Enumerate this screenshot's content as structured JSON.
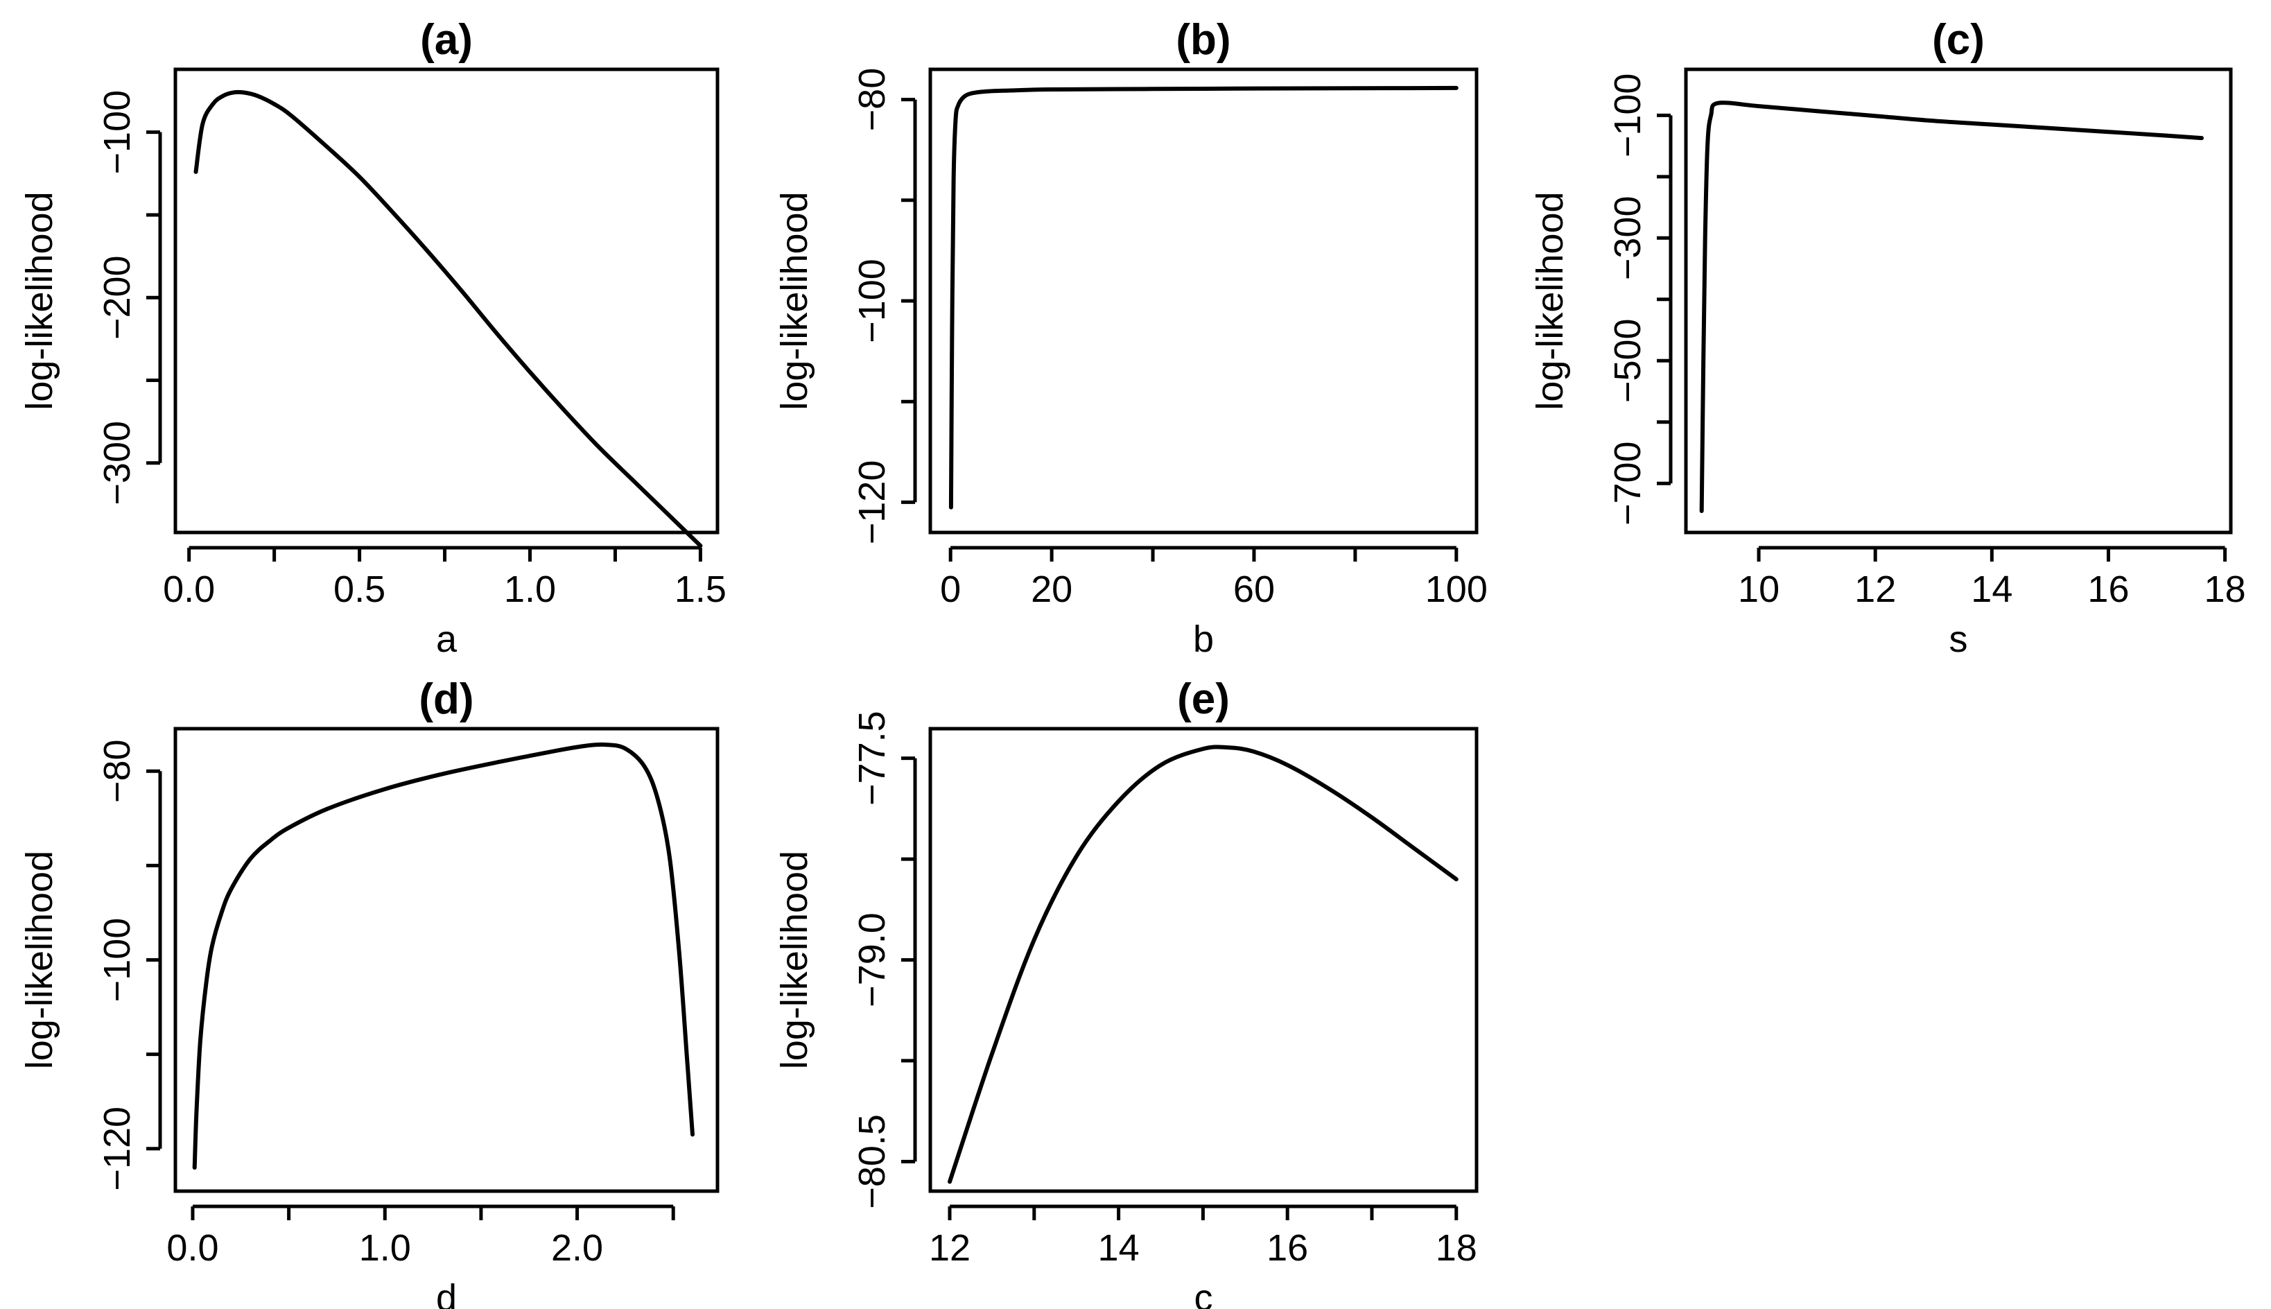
{
  "chart_data": [
    {
      "id": "a",
      "type": "line",
      "title": "(a)",
      "xlabel": "a",
      "ylabel": "log-likelihood",
      "xlim": [
        -0.04,
        1.55
      ],
      "ylim": [
        -342,
        -62
      ],
      "xticks": [
        0.0,
        0.5,
        1.0,
        1.5
      ],
      "xtick_labels": [
        "0.0",
        "0.5",
        "1.0",
        "1.5"
      ],
      "xminor": [
        0.25,
        0.75,
        1.25
      ],
      "yticks": [
        -100,
        -200,
        -300
      ],
      "ytick_labels": [
        "-100",
        "-200",
        "-300"
      ],
      "yminor": [
        -150,
        -250
      ],
      "series": [
        {
          "name": "log-likelihood",
          "x": [
            0.02,
            0.04,
            0.07,
            0.1,
            0.13,
            0.16,
            0.2,
            0.25,
            0.3,
            0.4,
            0.5,
            0.6,
            0.7,
            0.8,
            0.9,
            1.0,
            1.1,
            1.2,
            1.3,
            1.4,
            1.5
          ],
          "y": [
            -124,
            -95,
            -83,
            -78,
            -76,
            -76,
            -78,
            -83,
            -90,
            -108,
            -127,
            -149,
            -172,
            -196,
            -221,
            -245,
            -268,
            -290,
            -310,
            -330,
            -350
          ]
        }
      ]
    },
    {
      "id": "b",
      "type": "line",
      "title": "(b)",
      "xlabel": "b",
      "ylabel": "log-likelihood",
      "xlim": [
        -4,
        104
      ],
      "ylim": [
        -123,
        -77
      ],
      "xticks": [
        0,
        20,
        60,
        100
      ],
      "xtick_labels": [
        "0",
        "20",
        "60",
        "100"
      ],
      "xminor": [
        40,
        80
      ],
      "yticks": [
        -80,
        -100,
        -120
      ],
      "ytick_labels": [
        "-80",
        "-100",
        "-120"
      ],
      "yminor": [
        -90,
        -110
      ],
      "series": [
        {
          "name": "log-likelihood",
          "x": [
            0.1,
            0.3,
            0.6,
            1.0,
            1.5,
            2.5,
            4,
            7,
            12,
            20,
            40,
            60,
            80,
            100
          ],
          "y": [
            -120.5,
            -103,
            -88,
            -82,
            -80.6,
            -79.8,
            -79.4,
            -79.2,
            -79.1,
            -79.0,
            -78.95,
            -78.9,
            -78.88,
            -78.85
          ]
        }
      ]
    },
    {
      "id": "c",
      "type": "line",
      "title": "(c)",
      "xlabel": "s",
      "ylabel": "log-likelihood",
      "xlim": [
        8.75,
        18.1
      ],
      "ylim": [
        -780,
        -25
      ],
      "xticks": [
        10,
        12,
        14,
        16,
        18
      ],
      "xtick_labels": [
        "10",
        "12",
        "14",
        "16",
        "18"
      ],
      "xminor": [],
      "yticks": [
        -100,
        -300,
        -500,
        -700
      ],
      "ytick_labels": [
        "-100",
        "-300",
        "-500",
        "-700"
      ],
      "yminor": [
        -200,
        -400,
        -600
      ],
      "series": [
        {
          "name": "log-likelihood",
          "x": [
            9.02,
            9.05,
            9.08,
            9.12,
            9.18,
            9.3,
            10,
            11,
            12,
            13,
            14,
            15,
            16,
            17,
            17.6
          ],
          "y": [
            -745,
            -500,
            -300,
            -150,
            -100,
            -80,
            -85,
            -93,
            -101,
            -109,
            -115,
            -121,
            -127,
            -133,
            -137
          ]
        }
      ]
    },
    {
      "id": "d",
      "type": "line",
      "title": "(d)",
      "xlabel": "d",
      "ylabel": "log-likelihood",
      "xlim": [
        -0.09,
        2.73
      ],
      "ylim": [
        -124.5,
        -75.5
      ],
      "xticks": [
        0.0,
        1.0,
        2.0
      ],
      "xtick_labels": [
        "0.0",
        "1.0",
        "2.0"
      ],
      "xminor": [
        0.5,
        1.5,
        2.5
      ],
      "yticks": [
        -80,
        -100,
        -120
      ],
      "ytick_labels": [
        "-80",
        "-100",
        "-120"
      ],
      "yminor": [
        -90,
        -110
      ],
      "series": [
        {
          "name": "log-likelihood",
          "x": [
            0.01,
            0.02,
            0.04,
            0.07,
            0.1,
            0.15,
            0.2,
            0.3,
            0.4,
            0.5,
            0.7,
            1.0,
            1.3,
            1.6,
            1.9,
            2.05,
            2.15,
            2.25,
            2.35,
            2.42,
            2.48,
            2.53,
            2.57,
            2.6
          ],
          "y": [
            -122,
            -116,
            -108.5,
            -102.5,
            -98.6,
            -95,
            -92.5,
            -89.3,
            -87.4,
            -86,
            -84,
            -81.9,
            -80.3,
            -79,
            -77.8,
            -77.3,
            -77.2,
            -77.6,
            -79.5,
            -83,
            -89,
            -99,
            -110,
            -118.5
          ]
        }
      ]
    },
    {
      "id": "e",
      "type": "line",
      "title": "(e)",
      "xlabel": "c",
      "ylabel": "log-likelihood",
      "xlim": [
        11.77,
        18.24
      ],
      "ylim": [
        -80.72,
        -77.28
      ],
      "xticks": [
        12,
        14,
        16,
        18
      ],
      "xtick_labels": [
        "12",
        "14",
        "16",
        "18"
      ],
      "xminor": [
        13,
        15,
        17
      ],
      "yticks": [
        -77.5,
        -79.0,
        -80.5
      ],
      "ytick_labels": [
        "-77.5",
        "-79.0",
        "-80.5"
      ],
      "yminor": [
        -78.25,
        -79.75
      ],
      "series": [
        {
          "name": "log-likelihood",
          "x": [
            12,
            12.5,
            13,
            13.5,
            14,
            14.5,
            15,
            15.3,
            15.6,
            16,
            16.5,
            17,
            17.5,
            18
          ],
          "y": [
            -80.65,
            -79.7,
            -78.85,
            -78.23,
            -77.82,
            -77.55,
            -77.43,
            -77.42,
            -77.45,
            -77.55,
            -77.73,
            -77.94,
            -78.17,
            -78.4
          ]
        }
      ]
    }
  ]
}
